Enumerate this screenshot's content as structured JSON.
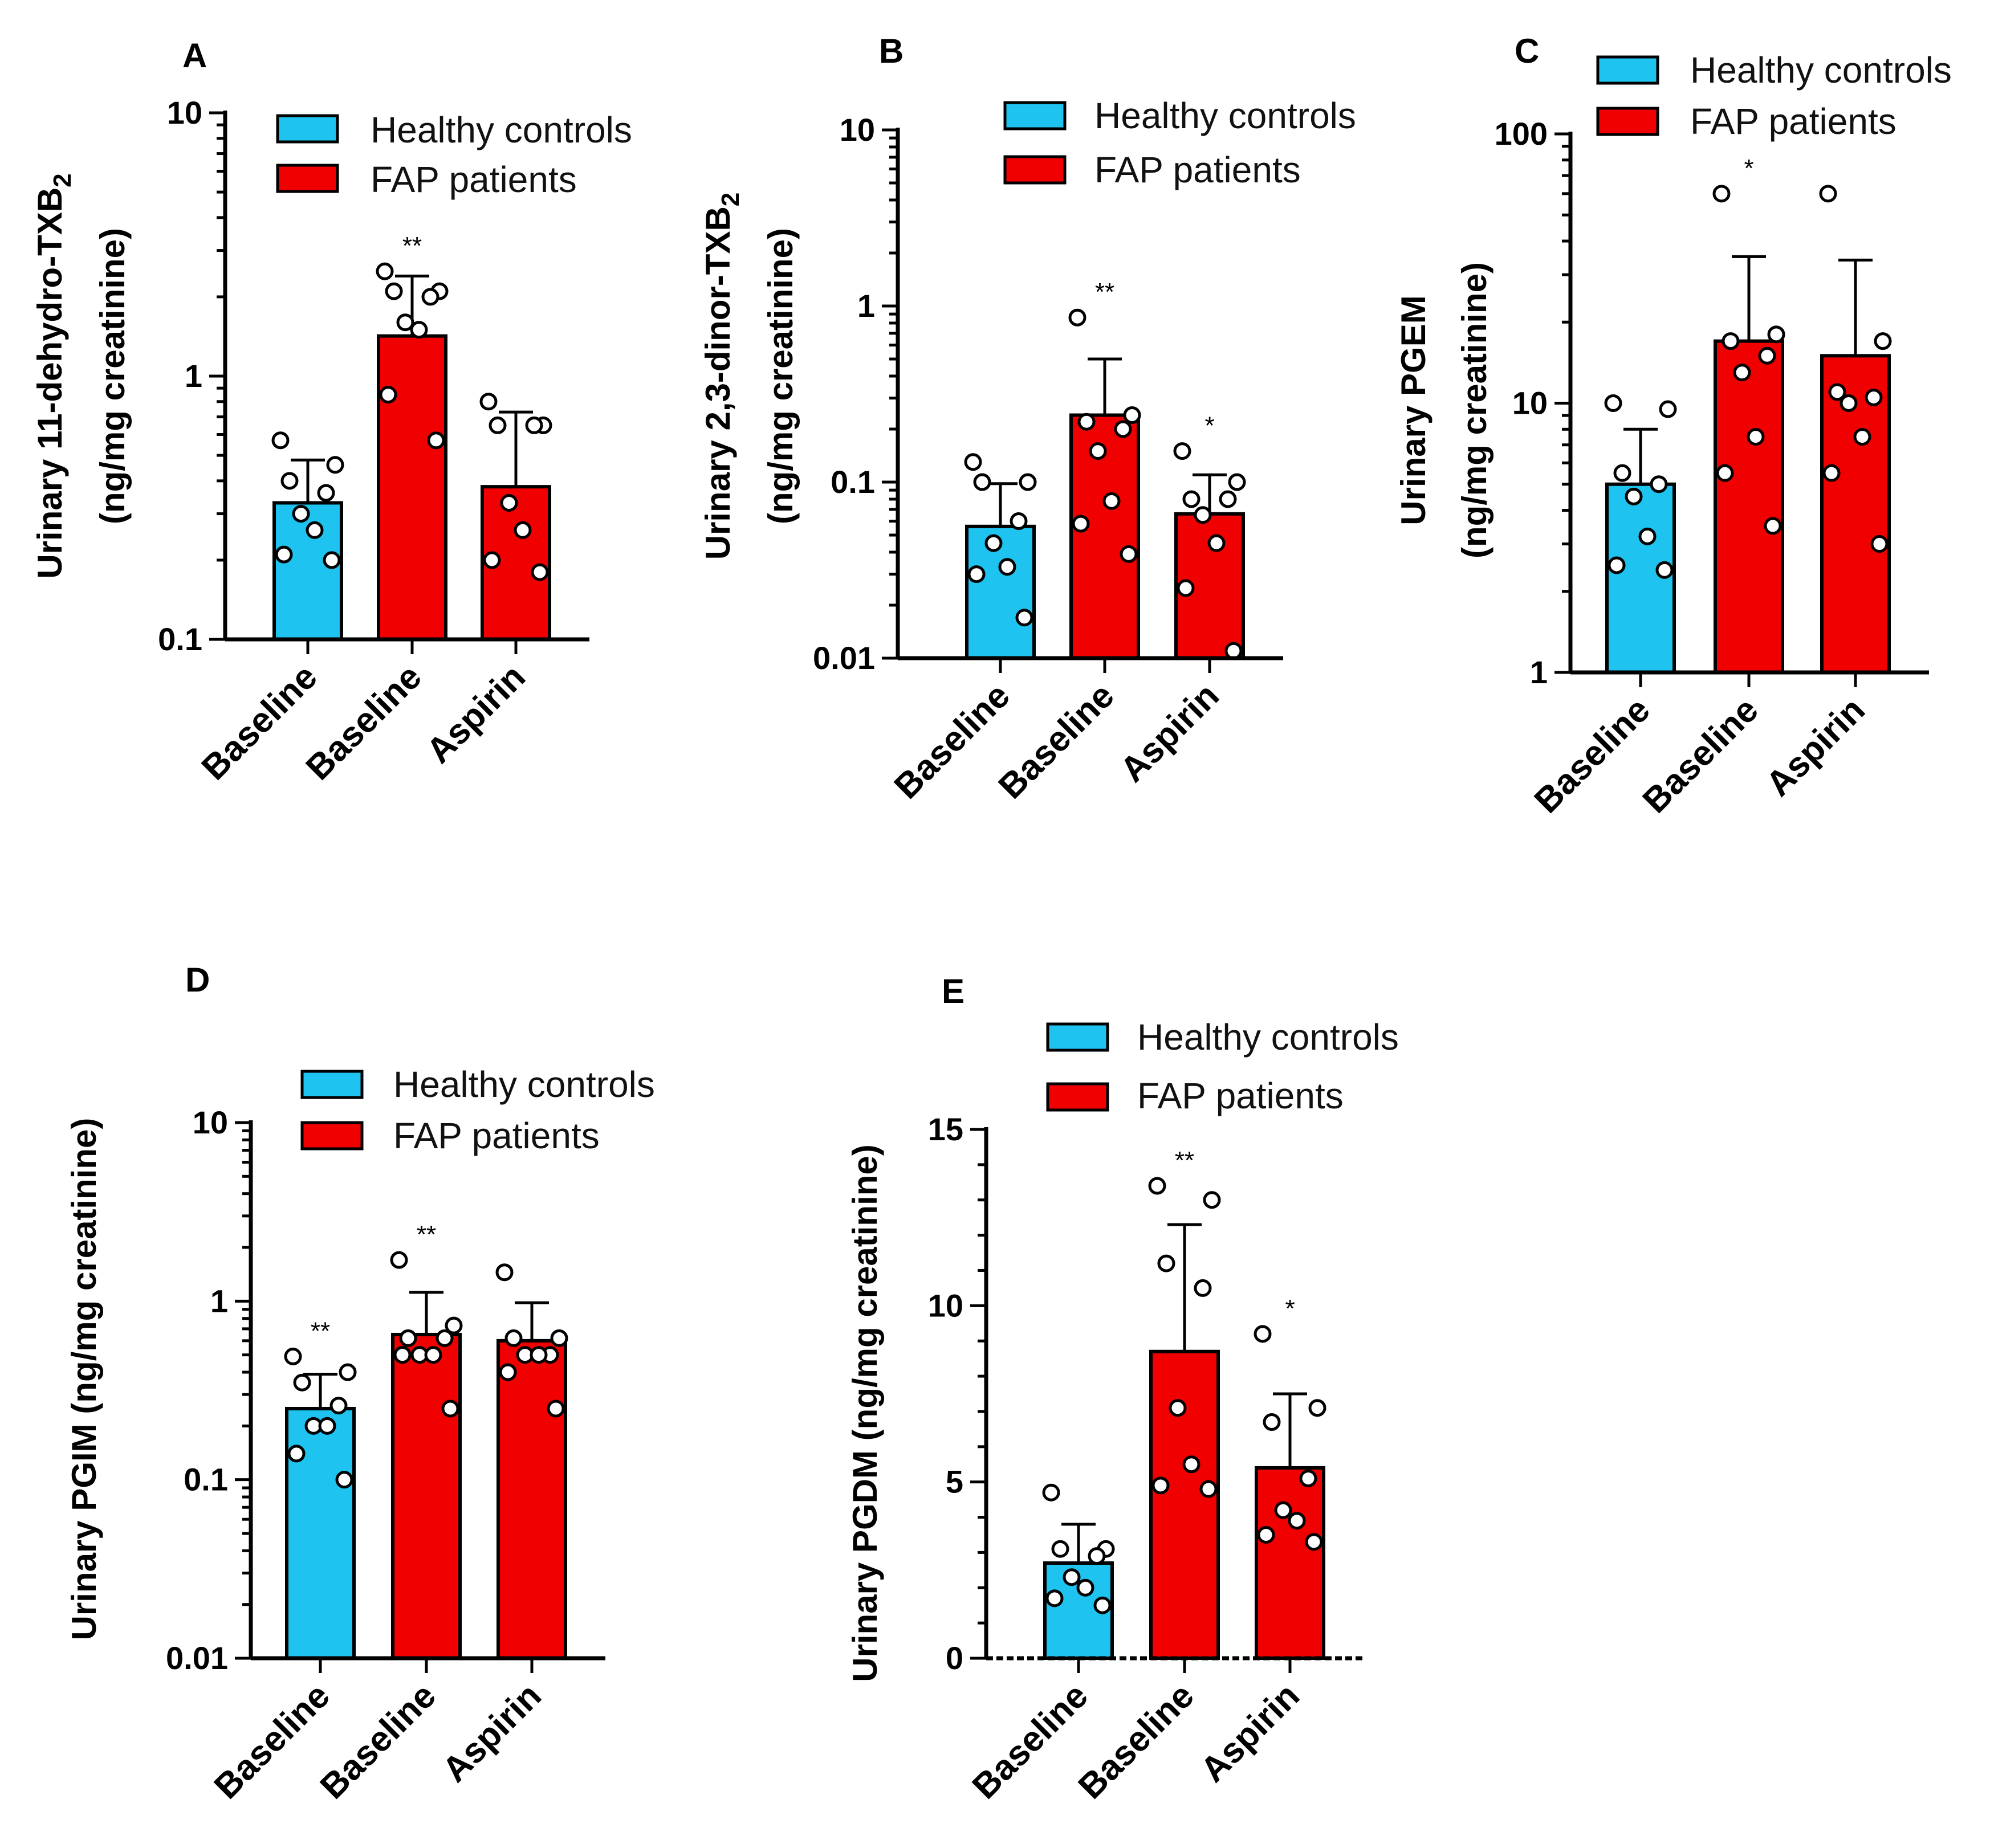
{
  "colors": {
    "healthy": "#1EC3EF",
    "fap": "#F00000"
  },
  "chart_data": [
    {
      "panel": "A",
      "type": "bar",
      "scale": "log",
      "ylabel_line1": "Urinary 11-dehydro-TXB",
      "ylabel_sub": "2",
      "ylabel_line2": "(ng/mg creatinine)",
      "ylim": [
        0.1,
        10
      ],
      "yticks": [
        0.1,
        1,
        10
      ],
      "ytick_labels": [
        "0.1",
        "1",
        "10"
      ],
      "categories": [
        "Baseline",
        "Baseline",
        "Aspirin"
      ],
      "groups": [
        "healthy",
        "fap",
        "fap"
      ],
      "means": [
        0.33,
        1.42,
        0.38
      ],
      "err_upper": [
        0.48,
        2.4,
        0.73
      ],
      "points": [
        [
          0.57,
          0.46,
          0.4,
          0.36,
          0.3,
          0.26,
          0.21,
          0.2
        ],
        [
          2.5,
          2.1,
          2.1,
          2.0,
          1.6,
          1.5,
          0.85,
          0.57
        ],
        [
          0.8,
          0.65,
          0.65,
          0.65,
          0.33,
          0.26,
          0.2,
          0.18
        ]
      ],
      "significance": [
        "",
        "**",
        ""
      ],
      "legend": [
        "Healthy controls",
        "FAP patients"
      ]
    },
    {
      "panel": "B",
      "type": "bar",
      "scale": "log",
      "ylabel_line1": "Urinary 2,3-dinor-TXB",
      "ylabel_sub": "2",
      "ylabel_line2": "(ng/mg creatinine)",
      "ylim": [
        0.01,
        10
      ],
      "yticks": [
        0.01,
        0.1,
        1,
        10
      ],
      "ytick_labels": [
        "0.01",
        "0.1",
        "1",
        "10"
      ],
      "categories": [
        "Baseline",
        "Baseline",
        "Aspirin"
      ],
      "groups": [
        "healthy",
        "fap",
        "fap"
      ],
      "means": [
        0.056,
        0.24,
        0.066
      ],
      "err_upper": [
        0.098,
        0.5,
        0.11
      ],
      "points": [
        [
          0.13,
          0.1,
          0.1,
          0.06,
          0.045,
          0.033,
          0.03,
          0.017
        ],
        [
          0.86,
          0.24,
          0.22,
          0.2,
          0.15,
          0.078,
          0.058,
          0.039
        ],
        [
          0.15,
          0.1,
          0.08,
          0.08,
          0.065,
          0.045,
          0.025,
          0.011
        ]
      ],
      "significance": [
        "",
        "**",
        "*"
      ],
      "legend": [
        "Healthy controls",
        "FAP patients"
      ]
    },
    {
      "panel": "C",
      "type": "bar",
      "scale": "log",
      "ylabel_line1": "Urinary PGEM",
      "ylabel_sub": "",
      "ylabel_line2": "(ng/mg creatinine)",
      "ylim": [
        1,
        100
      ],
      "yticks": [
        1,
        10,
        100
      ],
      "ytick_labels": [
        "1",
        "10",
        "100"
      ],
      "categories": [
        "Baseline",
        "Baseline",
        "Aspirin"
      ],
      "groups": [
        "healthy",
        "fap",
        "fap"
      ],
      "means": [
        5.0,
        17.0,
        15.0
      ],
      "err_upper": [
        8.0,
        35.0,
        34.0
      ],
      "points": [
        [
          10,
          9.5,
          5.5,
          5.0,
          4.5,
          3.2,
          2.5,
          2.4
        ],
        [
          60,
          18,
          17,
          15,
          13,
          7.5,
          5.5,
          3.5
        ],
        [
          60,
          17,
          11,
          10.5,
          10,
          7.5,
          5.5,
          3.0
        ]
      ],
      "significance": [
        "",
        "*",
        ""
      ],
      "legend": [
        "Healthy controls",
        "FAP patients"
      ]
    },
    {
      "panel": "D",
      "type": "bar",
      "scale": "log",
      "ylabel_line1": "Urinary PGIM (ng/mg creatinine)",
      "ylabel_sub": "",
      "ylabel_line2": "",
      "ylim": [
        0.01,
        10
      ],
      "yticks": [
        0.01,
        0.1,
        1,
        10
      ],
      "ytick_labels": [
        "0.01",
        "0.1",
        "1",
        "10"
      ],
      "categories": [
        "Baseline",
        "Baseline",
        "Aspirin"
      ],
      "groups": [
        "healthy",
        "fap",
        "fap"
      ],
      "means": [
        0.25,
        0.65,
        0.6
      ],
      "err_upper": [
        0.39,
        1.12,
        0.98
      ],
      "points": [
        [
          0.49,
          0.4,
          0.35,
          0.26,
          0.2,
          0.2,
          0.14,
          0.1
        ],
        [
          1.7,
          0.73,
          0.62,
          0.62,
          0.5,
          0.5,
          0.5,
          0.25
        ],
        [
          1.45,
          0.62,
          0.62,
          0.5,
          0.5,
          0.5,
          0.4,
          0.25
        ]
      ],
      "significance": [
        "**",
        "**",
        ""
      ],
      "legend": [
        "Healthy controls",
        "FAP patients"
      ]
    },
    {
      "panel": "E",
      "type": "bar",
      "scale": "linear",
      "ylabel_line1": "Urinary PGDM (ng/mg creatinine)",
      "ylabel_sub": "",
      "ylabel_line2": "",
      "ylim": [
        0,
        15
      ],
      "yticks": [
        0,
        5,
        10,
        15
      ],
      "ytick_labels": [
        "0",
        "5",
        "10",
        "15"
      ],
      "categories": [
        "Baseline",
        "Baseline",
        "Aspirin"
      ],
      "groups": [
        "healthy",
        "fap",
        "fap"
      ],
      "means": [
        2.7,
        8.7,
        5.4
      ],
      "err_upper": [
        3.8,
        12.3,
        7.5
      ],
      "points": [
        [
          4.7,
          3.1,
          3.1,
          2.9,
          2.3,
          2.0,
          1.7,
          1.5
        ],
        [
          13.4,
          13.0,
          11.2,
          10.5,
          7.1,
          5.5,
          4.9,
          4.8
        ],
        [
          9.2,
          7.1,
          6.7,
          5.1,
          4.2,
          3.9,
          3.5,
          3.3
        ]
      ],
      "significance": [
        "",
        "**",
        "*"
      ],
      "legend": [
        "Healthy controls",
        "FAP patients"
      ]
    }
  ]
}
